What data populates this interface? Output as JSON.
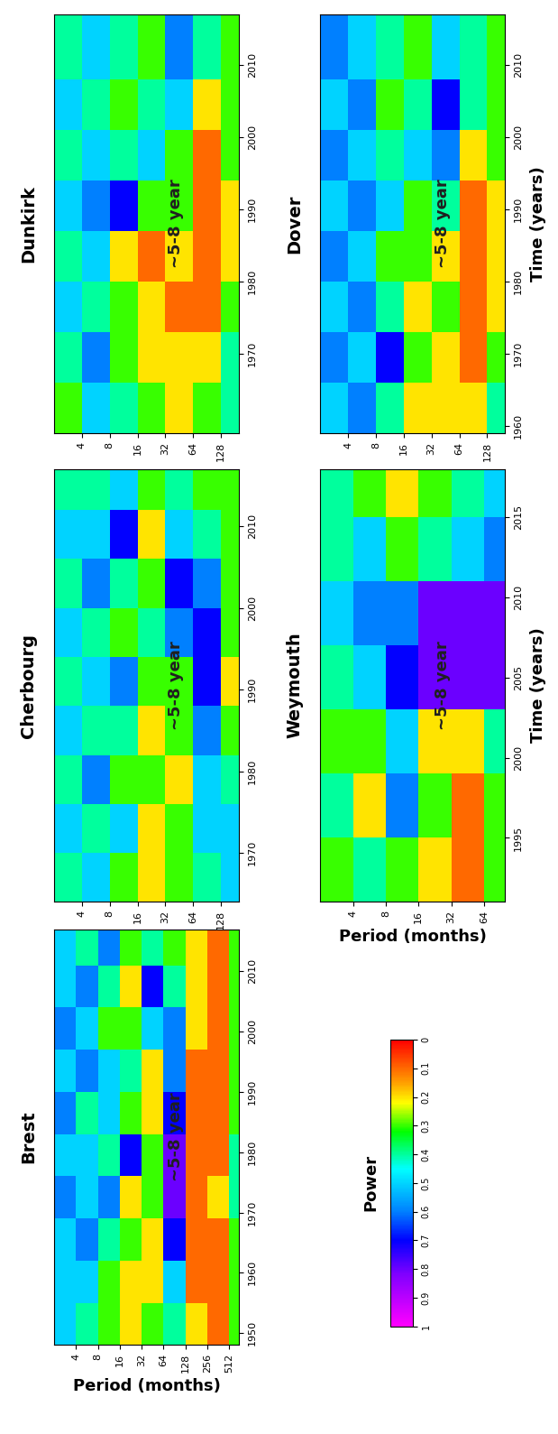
{
  "chart_data": [
    {
      "type": "heatmap",
      "title": "Brest",
      "annotation": "~5-8 year",
      "log": "x",
      "x_label": "Period (months)",
      "period_edges": [
        2,
        4,
        8,
        16,
        32,
        64,
        128,
        256,
        512,
        700
      ],
      "time_edges": [
        1948,
        1955,
        1962,
        1969,
        1976,
        1983,
        1990,
        1997,
        2004,
        2011,
        2017
      ],
      "xlim": [
        2,
        700
      ],
      "xticks": [
        4,
        8,
        16,
        32,
        64,
        128,
        256,
        512
      ],
      "ylim": [
        1948,
        2017
      ],
      "yticks": [
        1950,
        1960,
        1970,
        1980,
        1990,
        2000,
        2010
      ],
      "power": [
        [
          0.5,
          0.4,
          0.3,
          0.2,
          0.3,
          0.4,
          0.2,
          0.1,
          0.3
        ],
        [
          0.5,
          0.5,
          0.3,
          0.2,
          0.2,
          0.5,
          0.1,
          0.1,
          0.3
        ],
        [
          0.5,
          0.6,
          0.4,
          0.3,
          0.2,
          0.7,
          0.1,
          0.1,
          0.3
        ],
        [
          0.6,
          0.5,
          0.6,
          0.2,
          0.3,
          0.8,
          0.1,
          0.2,
          0.4
        ],
        [
          0.5,
          0.5,
          0.4,
          0.7,
          0.3,
          0.8,
          0.1,
          0.1,
          0.4
        ],
        [
          0.6,
          0.4,
          0.5,
          0.3,
          0.2,
          0.7,
          0.1,
          0.1,
          0.3
        ],
        [
          0.5,
          0.6,
          0.5,
          0.4,
          0.2,
          0.6,
          0.1,
          0.1,
          0.3
        ],
        [
          0.6,
          0.5,
          0.3,
          0.3,
          0.5,
          0.6,
          0.2,
          0.1,
          0.3
        ],
        [
          0.5,
          0.6,
          0.4,
          0.2,
          0.7,
          0.4,
          0.2,
          0.1,
          0.3
        ],
        [
          0.5,
          0.4,
          0.6,
          0.3,
          0.4,
          0.3,
          0.2,
          0.1,
          0.3
        ]
      ]
    },
    {
      "type": "heatmap",
      "title": "Cherbourg",
      "annotation": "~5-8 year",
      "log": "x",
      "period_edges": [
        2,
        4,
        8,
        16,
        32,
        64,
        128,
        200
      ],
      "time_edges": [
        1964,
        1970,
        1976,
        1982,
        1988,
        1994,
        2000,
        2006,
        2012,
        2017
      ],
      "xlim": [
        2,
        200
      ],
      "xticks": [
        4,
        8,
        16,
        32,
        64,
        128
      ],
      "ylim": [
        1964,
        2017
      ],
      "yticks": [
        1970,
        1980,
        1990,
        2000,
        2010
      ],
      "power": [
        [
          0.4,
          0.5,
          0.3,
          0.2,
          0.3,
          0.4,
          0.5
        ],
        [
          0.5,
          0.4,
          0.5,
          0.2,
          0.3,
          0.5,
          0.5
        ],
        [
          0.4,
          0.6,
          0.3,
          0.3,
          0.2,
          0.5,
          0.4
        ],
        [
          0.5,
          0.4,
          0.4,
          0.2,
          0.3,
          0.6,
          0.3
        ],
        [
          0.4,
          0.5,
          0.6,
          0.3,
          0.3,
          0.7,
          0.2
        ],
        [
          0.5,
          0.4,
          0.3,
          0.4,
          0.6,
          0.7,
          0.3
        ],
        [
          0.4,
          0.6,
          0.4,
          0.3,
          0.7,
          0.6,
          0.3
        ],
        [
          0.5,
          0.5,
          0.7,
          0.2,
          0.5,
          0.4,
          0.3
        ],
        [
          0.4,
          0.4,
          0.5,
          0.3,
          0.4,
          0.3,
          0.3
        ]
      ]
    },
    {
      "type": "heatmap",
      "title": "Dunkirk",
      "annotation": "~5-8 year",
      "log": "x",
      "period_edges": [
        2,
        4,
        8,
        16,
        32,
        64,
        128,
        200
      ],
      "time_edges": [
        1959,
        1966,
        1973,
        1980,
        1987,
        1994,
        2001,
        2008,
        2017
      ],
      "xlim": [
        2,
        200
      ],
      "xticks": [
        4,
        8,
        16,
        32,
        64,
        128
      ],
      "ylim": [
        1959,
        2017
      ],
      "yticks": [
        1970,
        1980,
        1990,
        2000,
        2010
      ],
      "power": [
        [
          0.3,
          0.5,
          0.4,
          0.3,
          0.2,
          0.3,
          0.4
        ],
        [
          0.4,
          0.6,
          0.3,
          0.2,
          0.2,
          0.2,
          0.4
        ],
        [
          0.5,
          0.4,
          0.3,
          0.2,
          0.1,
          0.1,
          0.3
        ],
        [
          0.4,
          0.5,
          0.2,
          0.1,
          0.2,
          0.1,
          0.2
        ],
        [
          0.5,
          0.6,
          0.7,
          0.3,
          0.3,
          0.1,
          0.2
        ],
        [
          0.4,
          0.5,
          0.4,
          0.5,
          0.3,
          0.1,
          0.3
        ],
        [
          0.5,
          0.4,
          0.3,
          0.4,
          0.5,
          0.2,
          0.3
        ],
        [
          0.4,
          0.5,
          0.4,
          0.3,
          0.6,
          0.4,
          0.3
        ]
      ]
    },
    {
      "type": "heatmap",
      "title": "Weymouth",
      "annotation": "~5-8 year",
      "log": "x",
      "x_label": "Period (months)",
      "y_label": "Time (years)",
      "period_edges": [
        2,
        4,
        8,
        16,
        32,
        64,
        100
      ],
      "time_edges": [
        1991,
        1995,
        1999,
        2003,
        2007,
        2011,
        2015,
        2018
      ],
      "xlim": [
        2,
        100
      ],
      "xticks": [
        4,
        8,
        16,
        32,
        64
      ],
      "ylim": [
        1991,
        2018
      ],
      "yticks": [
        1995,
        2000,
        2005,
        2010,
        2015
      ],
      "power": [
        [
          0.3,
          0.4,
          0.3,
          0.2,
          0.1,
          0.3
        ],
        [
          0.4,
          0.2,
          0.6,
          0.3,
          0.1,
          0.3
        ],
        [
          0.3,
          0.3,
          0.5,
          0.2,
          0.2,
          0.4
        ],
        [
          0.4,
          0.5,
          0.7,
          0.8,
          0.8,
          0.8
        ],
        [
          0.5,
          0.6,
          0.6,
          0.8,
          0.8,
          0.8
        ],
        [
          0.4,
          0.5,
          0.3,
          0.4,
          0.5,
          0.6
        ],
        [
          0.4,
          0.3,
          0.2,
          0.3,
          0.4,
          0.5
        ]
      ]
    },
    {
      "type": "heatmap",
      "title": "Dover",
      "annotation": "~5-8 year",
      "log": "x",
      "y_label": "Time (years)",
      "period_edges": [
        2,
        4,
        8,
        16,
        32,
        64,
        128,
        200
      ],
      "time_edges": [
        1959,
        1966,
        1973,
        1980,
        1987,
        1994,
        2001,
        2008,
        2017
      ],
      "xlim": [
        2,
        200
      ],
      "xticks": [
        4,
        8,
        16,
        32,
        64,
        128
      ],
      "ylim": [
        1959,
        2017
      ],
      "yticks": [
        1960,
        1970,
        1980,
        1990,
        2000,
        2010
      ],
      "power": [
        [
          0.5,
          0.6,
          0.4,
          0.2,
          0.2,
          0.2,
          0.4
        ],
        [
          0.6,
          0.5,
          0.7,
          0.3,
          0.2,
          0.1,
          0.3
        ],
        [
          0.5,
          0.6,
          0.4,
          0.2,
          0.3,
          0.1,
          0.2
        ],
        [
          0.6,
          0.5,
          0.3,
          0.3,
          0.2,
          0.1,
          0.2
        ],
        [
          0.5,
          0.6,
          0.5,
          0.3,
          0.4,
          0.1,
          0.2
        ],
        [
          0.6,
          0.5,
          0.4,
          0.5,
          0.6,
          0.2,
          0.3
        ],
        [
          0.5,
          0.6,
          0.3,
          0.4,
          0.7,
          0.4,
          0.3
        ],
        [
          0.6,
          0.5,
          0.4,
          0.3,
          0.5,
          0.4,
          0.3
        ]
      ]
    }
  ],
  "colorbar": {
    "label": "Power",
    "range": [
      0,
      1
    ],
    "ticks": [
      1,
      0.9,
      0.8,
      0.7,
      0.6,
      0.5,
      0.4,
      0.3,
      0.2,
      0.1,
      0
    ]
  }
}
